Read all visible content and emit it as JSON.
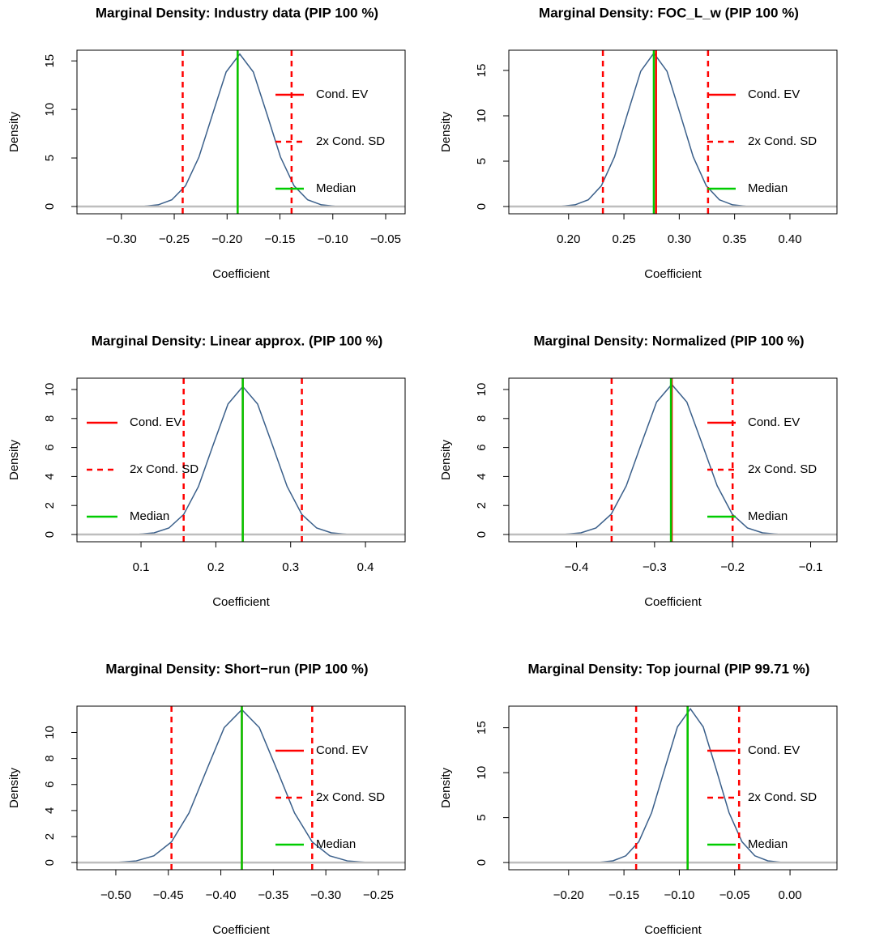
{
  "chart_data": [
    {
      "type": "density",
      "title": "Marginal Density: Industry data (PIP 100 %)",
      "x_label": "Coefficient",
      "y_label": "Density",
      "x": [
        -0.2908,
        -0.278,
        -0.2651,
        -0.2523,
        -0.2394,
        -0.2266,
        -0.2137,
        -0.2009,
        -0.188,
        -0.1752,
        -0.1623,
        -0.1495,
        -0.1366,
        -0.1238,
        -0.1109,
        -0.0981,
        -0.0852
      ],
      "values": [
        0.005,
        0.035,
        0.174,
        0.689,
        2.124,
        5.098,
        9.522,
        13.855,
        15.7,
        13.855,
        9.522,
        5.098,
        2.124,
        0.689,
        0.174,
        0.035,
        0.005
      ],
      "color": "#3a5f8a",
      "lines": [
        {
          "name": "Cond. EV",
          "color": "#ff0000",
          "style": "solid",
          "x": [
            -0.19
          ]
        },
        {
          "name": "2x Cond. SD",
          "color": "#ff0000",
          "style": "dashed",
          "x": [
            -0.242,
            -0.139
          ]
        },
        {
          "name": "Median",
          "color": "#00cc00",
          "style": "solid",
          "x": [
            -0.19
          ]
        }
      ],
      "legend_position": "right",
      "xlim": [
        -0.342,
        -0.0316
      ],
      "ylim": [
        -0.75,
        16.1
      ],
      "xticks": [
        {
          "value": -0.3,
          "label": "−0.30"
        },
        {
          "value": -0.25,
          "label": "−0.25"
        },
        {
          "value": -0.2,
          "label": "−0.20"
        },
        {
          "value": -0.15,
          "label": "−0.15"
        },
        {
          "value": -0.1,
          "label": "−0.10"
        },
        {
          "value": -0.05,
          "label": "−0.05"
        }
      ],
      "yticks": [
        0,
        5,
        10,
        15
      ]
    },
    {
      "type": "density",
      "title": "Marginal Density: FOC_L_w (PIP 100 %)",
      "x_label": "Coefficient",
      "y_label": "Density",
      "x": [
        0.1822,
        0.1941,
        0.2059,
        0.2178,
        0.2296,
        0.2415,
        0.2533,
        0.2652,
        0.277,
        0.2889,
        0.3007,
        0.3126,
        0.3244,
        0.3363,
        0.3481,
        0.36,
        0.3718
      ],
      "values": [
        0.006,
        0.037,
        0.188,
        0.742,
        2.287,
        5.487,
        10.25,
        14.914,
        16.9,
        14.914,
        10.25,
        5.487,
        2.287,
        0.742,
        0.188,
        0.037,
        0.006
      ],
      "color": "#3a5f8a",
      "lines": [
        {
          "name": "Cond. EV",
          "color": "#ff0000",
          "style": "solid",
          "x": [
            0.279
          ]
        },
        {
          "name": "2x Cond. SD",
          "color": "#ff0000",
          "style": "dashed",
          "x": [
            0.231,
            0.326
          ]
        },
        {
          "name": "Median",
          "color": "#00cc00",
          "style": "solid",
          "x": [
            0.277
          ]
        }
      ],
      "legend_position": "right",
      "xlim": [
        0.146,
        0.4425
      ],
      "ylim": [
        -0.8,
        17.23
      ],
      "xticks": [
        {
          "value": 0.2,
          "label": "0.20"
        },
        {
          "value": 0.25,
          "label": "0.25"
        },
        {
          "value": 0.3,
          "label": "0.30"
        },
        {
          "value": 0.35,
          "label": "0.35"
        },
        {
          "value": 0.4,
          "label": "0.40"
        }
      ],
      "yticks": [
        0,
        5,
        10,
        15
      ]
    },
    {
      "type": "density",
      "title": "Marginal Density: Linear approx. (PIP 100 %)",
      "x_label": "Coefficient",
      "y_label": "Density",
      "x": [
        0.078,
        0.0978,
        0.1175,
        0.1373,
        0.157,
        0.1768,
        0.1965,
        0.2163,
        0.236,
        0.2558,
        0.2755,
        0.2953,
        0.315,
        0.3348,
        0.3545,
        0.3743,
        0.394
      ],
      "values": [
        0.003,
        0.022,
        0.113,
        0.448,
        1.38,
        3.312,
        6.186,
        9.002,
        10.2,
        9.002,
        6.186,
        3.312,
        1.38,
        0.448,
        0.113,
        0.022,
        0.003
      ],
      "color": "#3a5f8a",
      "lines": [
        {
          "name": "Cond. EV",
          "color": "#ff0000",
          "style": "solid",
          "x": [
            0.236
          ]
        },
        {
          "name": "2x Cond. SD",
          "color": "#ff0000",
          "style": "dashed",
          "x": [
            0.157,
            0.315
          ]
        },
        {
          "name": "Median",
          "color": "#00cc00",
          "style": "solid",
          "x": [
            0.236
          ]
        }
      ],
      "legend_position": "left",
      "xlim": [
        0.0144,
        0.453
      ],
      "ylim": [
        -0.5,
        10.78
      ],
      "xticks": [
        0.1,
        0.2,
        0.3,
        0.4
      ],
      "yticks": [
        0,
        2,
        4,
        6,
        8,
        10
      ]
    },
    {
      "type": "density",
      "title": "Marginal Density: Normalized (PIP 100 %)",
      "x_label": "Coefficient",
      "y_label": "Density",
      "x": [
        -0.4332,
        -0.4138,
        -0.3944,
        -0.375,
        -0.3556,
        -0.3362,
        -0.3168,
        -0.2974,
        -0.278,
        -0.2586,
        -0.2392,
        -0.2198,
        -0.2004,
        -0.181,
        -0.1616,
        -0.1422,
        -0.1228
      ],
      "values": [
        0.003,
        0.023,
        0.115,
        0.454,
        1.4,
        3.361,
        6.277,
        9.134,
        10.35,
        9.134,
        6.277,
        3.361,
        1.4,
        0.454,
        0.115,
        0.023,
        0.003
      ],
      "color": "#3a5f8a",
      "lines": [
        {
          "name": "Cond. EV",
          "color": "#ff0000",
          "style": "solid",
          "x": [
            -0.278
          ]
        },
        {
          "name": "2x Cond. SD",
          "color": "#ff0000",
          "style": "dashed",
          "x": [
            -0.355,
            -0.2
          ]
        },
        {
          "name": "Median",
          "color": "#00cc00",
          "style": "solid",
          "x": [
            -0.279
          ]
        }
      ],
      "legend_position": "right",
      "xlim": [
        -0.4867,
        -0.0663
      ],
      "ylim": [
        -0.5,
        10.78
      ],
      "xticks": [
        {
          "value": -0.4,
          "label": "−0.4"
        },
        {
          "value": -0.3,
          "label": "−0.3"
        },
        {
          "value": -0.2,
          "label": "−0.2"
        },
        {
          "value": -0.1,
          "label": "−0.1"
        }
      ],
      "yticks": [
        0,
        2,
        4,
        6,
        8,
        10
      ]
    },
    {
      "type": "density",
      "title": "Marginal Density: Short−run (PIP 100 %)",
      "x_label": "Coefficient",
      "y_label": "Density",
      "x": [
        -0.514,
        -0.4973,
        -0.4805,
        -0.4638,
        -0.447,
        -0.4303,
        -0.4135,
        -0.3968,
        -0.38,
        -0.3633,
        -0.3465,
        -0.3298,
        -0.313,
        -0.2963,
        -0.2795,
        -0.2628,
        -0.246
      ],
      "values": [
        0.004,
        0.026,
        0.13,
        0.516,
        1.59,
        3.815,
        7.126,
        10.369,
        11.75,
        10.369,
        7.126,
        3.815,
        1.59,
        0.516,
        0.13,
        0.026,
        0.004
      ],
      "color": "#3a5f8a",
      "lines": [
        {
          "name": "Cond. EV",
          "color": "#ff0000",
          "style": "solid",
          "x": [
            -0.38
          ]
        },
        {
          "name": "2x Cond. SD",
          "color": "#ff0000",
          "style": "dashed",
          "x": [
            -0.447,
            -0.313
          ]
        },
        {
          "name": "Median",
          "color": "#00cc00",
          "style": "solid",
          "x": [
            -0.38
          ]
        }
      ],
      "legend_position": "right",
      "xlim": [
        -0.537,
        -0.2245
      ],
      "ylim": [
        -0.55,
        12.02
      ],
      "xticks": [
        {
          "value": -0.5,
          "label": "−0.50"
        },
        {
          "value": -0.45,
          "label": "−0.45"
        },
        {
          "value": -0.4,
          "label": "−0.40"
        },
        {
          "value": -0.35,
          "label": "−0.35"
        },
        {
          "value": -0.3,
          "label": "−0.30"
        },
        {
          "value": -0.25,
          "label": "−0.25"
        }
      ],
      "yticks": [
        0,
        2,
        4,
        6,
        8,
        10
      ]
    },
    {
      "type": "density",
      "title": "Marginal Density: Top journal (PIP 99.71 %)",
      "x_label": "Coefficient",
      "y_label": "Density",
      "x": [
        -0.1832,
        -0.1716,
        -0.1599,
        -0.1483,
        -0.1366,
        -0.125,
        -0.1133,
        -0.1017,
        -0.09,
        -0.0784,
        -0.0667,
        -0.0551,
        -0.0434,
        -0.0318,
        -0.0201,
        -0.0085,
        0.0032
      ],
      "values": [
        0.006,
        0.038,
        0.19,
        0.751,
        2.314,
        5.552,
        10.371,
        15.091,
        17.1,
        15.091,
        10.371,
        5.552,
        2.314,
        0.751,
        0.19,
        0.038,
        0.006
      ],
      "color": "#3a5f8a",
      "lines": [
        {
          "name": "Cond. EV",
          "color": "#ff0000",
          "style": "solid",
          "x": [
            -0.0925
          ]
        },
        {
          "name": "2x Cond. SD",
          "color": "#ff0000",
          "style": "dashed",
          "x": [
            -0.139,
            -0.046
          ]
        },
        {
          "name": "Median",
          "color": "#00cc00",
          "style": "solid",
          "x": [
            -0.0925
          ]
        }
      ],
      "legend_position": "right",
      "xlim": [
        -0.254,
        0.0424
      ],
      "ylim": [
        -0.8,
        17.4
      ],
      "xticks": [
        {
          "value": -0.2,
          "label": "−0.20"
        },
        {
          "value": -0.15,
          "label": "−0.15"
        },
        {
          "value": -0.1,
          "label": "−0.10"
        },
        {
          "value": -0.05,
          "label": "−0.05"
        },
        {
          "value": 0,
          "label": "0.00"
        }
      ],
      "yticks": [
        0,
        5,
        10,
        15
      ]
    }
  ]
}
